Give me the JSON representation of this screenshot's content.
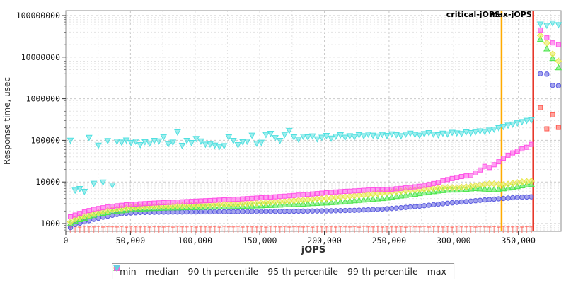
{
  "chart_data": {
    "type": "scatter",
    "title": "",
    "xlabel": "jOPS",
    "ylabel": "Response time, usec",
    "x_axis": {
      "min": 0,
      "max": 383000,
      "minor_step": 25000,
      "ticks": [
        0,
        50000,
        100000,
        150000,
        200000,
        250000,
        300000,
        350000
      ],
      "tick_labels": [
        "0",
        "50,000",
        "100,000",
        "150,000",
        "200,000",
        "250,000",
        "300,000",
        "350,000"
      ]
    },
    "y_axis": {
      "scale": "log",
      "min": 700,
      "max": 128000000,
      "ticks": [
        1000,
        10000,
        100000,
        1000000,
        10000000,
        100000000
      ],
      "tick_labels": [
        "1000",
        "10000",
        "100000",
        "1000000",
        "10000000",
        "100000000"
      ]
    },
    "x_start": 3600,
    "x_step": 3600,
    "vlines": [
      {
        "name": "critical-jops",
        "label": "critical-jOPS",
        "x": 337000,
        "color": "#ffaa00"
      },
      {
        "name": "max-jops",
        "label": "max-jOPS",
        "x": 361500,
        "color": "#e62e20"
      }
    ],
    "series": [
      {
        "name": "min",
        "label": "min",
        "marker": "tee",
        "color": "#ff5a50",
        "values": [
          830,
          850,
          820,
          860,
          840,
          835,
          855,
          825,
          845,
          840,
          830,
          850,
          820,
          860,
          840,
          835,
          855,
          825,
          845,
          840,
          830,
          850,
          820,
          860,
          840,
          835,
          855,
          825,
          845,
          840,
          830,
          850,
          820,
          860,
          840,
          835,
          855,
          825,
          845,
          840,
          830,
          850,
          820,
          860,
          840,
          835,
          855,
          825,
          845,
          840,
          830,
          850,
          820,
          860,
          840,
          835,
          855,
          825,
          845,
          840,
          830,
          850,
          820,
          860,
          840,
          835,
          855,
          825,
          845,
          840,
          830,
          850,
          820,
          860,
          840,
          835,
          855,
          825,
          845,
          840,
          830,
          850,
          820,
          860,
          840,
          835,
          855,
          825,
          845,
          840,
          830,
          850,
          820,
          860,
          840,
          835,
          855,
          825,
          845,
          840
        ],
        "overload": [
          [
            367000,
            610000
          ],
          [
            372000,
            190000
          ],
          [
            376500,
            410000
          ],
          [
            381000,
            205000
          ]
        ]
      },
      {
        "name": "median",
        "label": "median",
        "marker": "circle",
        "color": "#5a5ae0",
        "values": [
          800,
          950,
          1020,
          1100,
          1180,
          1260,
          1340,
          1420,
          1500,
          1580,
          1650,
          1720,
          1770,
          1800,
          1820,
          1840,
          1850,
          1860,
          1870,
          1880,
          1880,
          1880,
          1890,
          1890,
          1890,
          1900,
          1900,
          1900,
          1910,
          1910,
          1910,
          1920,
          1920,
          1920,
          1930,
          1930,
          1930,
          1940,
          1940,
          1950,
          1950,
          1950,
          1955,
          1960,
          1965,
          1970,
          1975,
          1980,
          1985,
          1990,
          1995,
          2000,
          2005,
          2010,
          2015,
          2020,
          2030,
          2040,
          2050,
          2060,
          2070,
          2080,
          2100,
          2120,
          2140,
          2170,
          2200,
          2230,
          2270,
          2310,
          2350,
          2400,
          2450,
          2500,
          2560,
          2620,
          2690,
          2760,
          2840,
          2920,
          3000,
          3080,
          3160,
          3230,
          3300,
          3380,
          3460,
          3540,
          3620,
          3700,
          3780,
          3860,
          3940,
          4020,
          4100,
          4180,
          4250,
          4310,
          4360,
          4400
        ],
        "overload": [
          [
            367000,
            4000000
          ],
          [
            372000,
            3900000
          ],
          [
            376500,
            2100000
          ],
          [
            381000,
            2050000
          ]
        ]
      },
      {
        "name": "p90",
        "label": "90-th percentile",
        "marker": "triangle-up",
        "color": "#4ce64c",
        "values": [
          1000,
          1150,
          1250,
          1350,
          1500,
          1600,
          1700,
          1780,
          1850,
          1920,
          1980,
          2040,
          2100,
          2150,
          2200,
          2240,
          2270,
          2300,
          2320,
          2340,
          2360,
          2380,
          2390,
          2400,
          2420,
          2430,
          2440,
          2460,
          2470,
          2480,
          2500,
          2510,
          2530,
          2540,
          2560,
          2580,
          2600,
          2620,
          2640,
          2660,
          2680,
          2700,
          2730,
          2750,
          2780,
          2810,
          2840,
          2870,
          2900,
          2930,
          2960,
          3000,
          3040,
          3080,
          3120,
          3160,
          3210,
          3260,
          3310,
          3370,
          3500,
          3560,
          3630,
          3700,
          3780,
          3860,
          3940,
          4030,
          4120,
          4350,
          4500,
          4650,
          4800,
          4950,
          5100,
          5300,
          5500,
          5700,
          5900,
          6100,
          6250,
          6400,
          6430,
          6450,
          6550,
          6700,
          6850,
          7000,
          6900,
          6800,
          6700,
          6600,
          6750,
          6950,
          7200,
          7500,
          7800,
          8200,
          8600,
          8900
        ],
        "overload": [
          [
            367000,
            27000000
          ],
          [
            372000,
            16000000
          ],
          [
            376500,
            9400000
          ],
          [
            381000,
            5600000
          ]
        ]
      },
      {
        "name": "p95",
        "label": "95-th percentile",
        "marker": "diamond",
        "color": "#e8e84a",
        "values": [
          1100,
          1300,
          1400,
          1500,
          1620,
          1730,
          1840,
          1950,
          2060,
          2170,
          2240,
          2300,
          2360,
          2410,
          2450,
          2490,
          2520,
          2550,
          2570,
          2600,
          2620,
          2640,
          2660,
          2680,
          2700,
          2720,
          2740,
          2760,
          2780,
          2800,
          2830,
          2850,
          2880,
          2900,
          2930,
          2960,
          2990,
          3020,
          3060,
          3100,
          3140,
          3180,
          3230,
          3280,
          3330,
          3380,
          3440,
          3500,
          3560,
          3620,
          3690,
          3760,
          3830,
          3910,
          3990,
          4070,
          4160,
          4250,
          4350,
          4450,
          4550,
          4660,
          4770,
          4890,
          5010,
          5140,
          5270,
          5410,
          5550,
          5700,
          5850,
          6000,
          6150,
          6300,
          6450,
          6600,
          6750,
          6900,
          7050,
          7200,
          7300,
          7400,
          7350,
          7300,
          7500,
          7700,
          7900,
          8200,
          8500,
          8800,
          9100,
          9000,
          8800,
          8600,
          8900,
          9300,
          9700,
          10100,
          10300,
          10500
        ],
        "overload": [
          [
            367000,
            33000000
          ],
          [
            372000,
            22000000
          ],
          [
            376500,
            12000000
          ],
          [
            381000,
            8000000
          ]
        ]
      },
      {
        "name": "p99",
        "label": "99-th percentile",
        "marker": "square",
        "color": "#ff50e6",
        "values": [
          1450,
          1600,
          1750,
          1900,
          2050,
          2200,
          2300,
          2400,
          2500,
          2600,
          2680,
          2750,
          2820,
          2880,
          2930,
          2980,
          3020,
          3060,
          3100,
          3140,
          3180,
          3220,
          3260,
          3300,
          3340,
          3380,
          3420,
          3460,
          3500,
          3540,
          3580,
          3620,
          3670,
          3720,
          3770,
          3820,
          3870,
          3930,
          3990,
          4050,
          4110,
          4180,
          4250,
          4320,
          4400,
          4480,
          4560,
          4650,
          4740,
          4840,
          4940,
          5040,
          5150,
          5260,
          5380,
          5500,
          5630,
          5760,
          5850,
          5950,
          6000,
          6100,
          6200,
          6300,
          6400,
          6450,
          6500,
          6550,
          6600,
          6700,
          6850,
          7000,
          7200,
          7400,
          7650,
          7900,
          8300,
          8700,
          9200,
          9800,
          10800,
          11400,
          12100,
          12900,
          13500,
          14000,
          14300,
          16500,
          19400,
          23700,
          22200,
          26000,
          30600,
          37300,
          44000,
          50000,
          55000,
          62000,
          68000,
          80000
        ],
        "overload": [
          [
            367000,
            45000000
          ],
          [
            372000,
            29000000
          ],
          [
            376500,
            22000000
          ],
          [
            381000,
            20000000
          ]
        ]
      },
      {
        "name": "max",
        "label": "max",
        "marker": "triangle-down",
        "color": "#50e0e0",
        "values": [
          100000,
          6300,
          6900,
          5900,
          117000,
          9200,
          76000,
          9900,
          98000,
          8400,
          95000,
          90000,
          101000,
          88000,
          95000,
          78000,
          92000,
          85000,
          99000,
          96000,
          121000,
          82000,
          90000,
          158000,
          75000,
          99000,
          88000,
          110000,
          96000,
          80000,
          81000,
          76000,
          71000,
          74000,
          120000,
          99000,
          78000,
          92000,
          95000,
          132000,
          85000,
          89000,
          137000,
          146000,
          115000,
          99000,
          137000,
          172000,
          120000,
          106000,
          125000,
          120000,
          127000,
          108000,
          118000,
          130000,
          112000,
          125000,
          135000,
          118000,
          128000,
          122000,
          135000,
          128000,
          140000,
          132000,
          126000,
          138000,
          130000,
          142000,
          136000,
          128000,
          140000,
          148000,
          138000,
          132000,
          144000,
          152000,
          140000,
          135000,
          148000,
          142000,
          155000,
          150000,
          145000,
          158000,
          152000,
          160000,
          168000,
          162000,
          175000,
          185000,
          200000,
          215000,
          230000,
          245000,
          262000,
          280000,
          300000,
          310000
        ],
        "overload": [
          [
            367000,
            62000000
          ],
          [
            372000,
            58000000
          ],
          [
            376500,
            66000000
          ],
          [
            381000,
            60000000
          ]
        ]
      }
    ]
  }
}
